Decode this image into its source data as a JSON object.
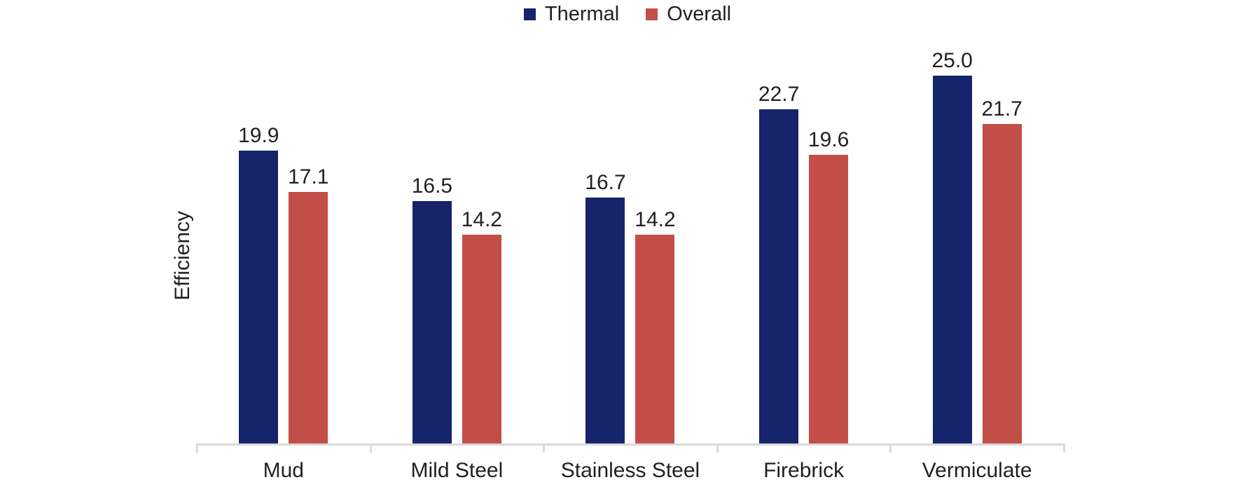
{
  "chart_data": {
    "type": "bar",
    "title": "",
    "xlabel": "",
    "ylabel": "Efficiency",
    "categories": [
      "Mud",
      "Mild Steel",
      "Stainless Steel",
      "Firebrick",
      "Vermiculate"
    ],
    "series": [
      {
        "name": "Thermal",
        "color": "#15246B",
        "values": [
          19.9,
          16.5,
          16.7,
          22.7,
          25.0
        ],
        "labels": [
          "19.9",
          "16.5",
          "16.7",
          "22.7",
          "25.0"
        ]
      },
      {
        "name": "Overall",
        "color": "#C34E47",
        "values": [
          17.1,
          14.2,
          14.2,
          19.6,
          21.7
        ],
        "labels": [
          "17.1",
          "14.2",
          "14.2",
          "19.6",
          "21.7"
        ]
      }
    ],
    "ylim": [
      0,
      28
    ],
    "grid": false,
    "legend_position": "top-center",
    "axis_color": "#D9D9D9",
    "background_color": "#FFFFFF",
    "text_color": "#231F20"
  }
}
